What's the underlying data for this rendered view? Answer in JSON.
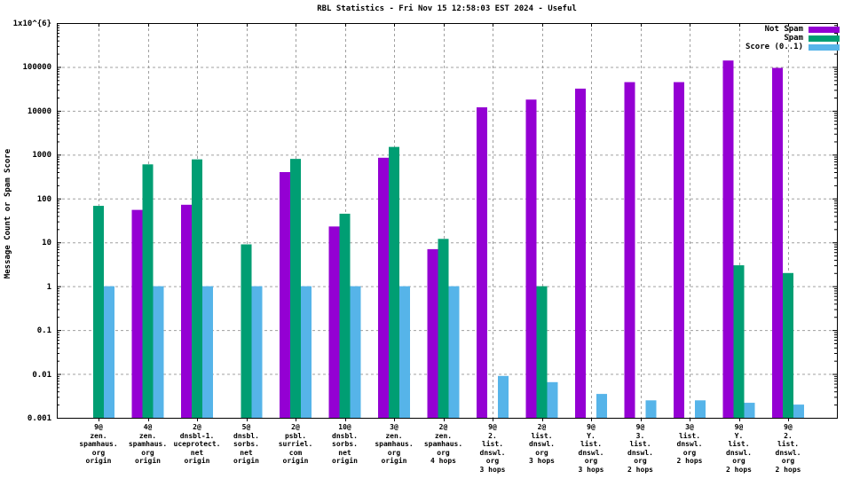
{
  "chart_data": {
    "type": "bar",
    "title": "RBL Statistics - Fri Nov 15 12:58:03 EST 2024 - Useful",
    "ylabel": "Message Count or Spam Score",
    "xlabel": "",
    "y_scale": "log",
    "ylim": [
      0.001,
      1000000
    ],
    "y_tick_labels": [
      "1x10^{6}",
      "100000",
      "10000",
      "1000",
      "100",
      "10",
      "1",
      "0.1",
      "0.01",
      "0.001"
    ],
    "grid": true,
    "legend_position": "top-right-inside",
    "categories": [
      [
        "9@",
        "zen.",
        "spamhaus.",
        "org",
        "origin"
      ],
      [
        "4@",
        "zen.",
        "spamhaus.",
        "org",
        "origin"
      ],
      [
        "2@",
        "dnsbl-1.",
        "uceprotect.",
        "net",
        "origin"
      ],
      [
        "5@",
        "dnsbl.",
        "sorbs.",
        "net",
        "origin"
      ],
      [
        "2@",
        "psbl.",
        "surriel.",
        "com",
        "origin"
      ],
      [
        "10@",
        "dnsbl.",
        "sorbs.",
        "net",
        "origin"
      ],
      [
        "3@",
        "zen.",
        "spamhaus.",
        "org",
        "origin"
      ],
      [
        "2@",
        "zen.",
        "spamhaus.",
        "org",
        "4 hops"
      ],
      [
        "9@",
        "2.",
        "list.",
        "dnswl.",
        "org",
        "3 hops"
      ],
      [
        "2@",
        "list.",
        "dnswl.",
        "org",
        "3 hops"
      ],
      [
        "9@",
        "Y.",
        "list.",
        "dnswl.",
        "org",
        "3 hops"
      ],
      [
        "9@",
        "3.",
        "list.",
        "dnswl.",
        "org",
        "2 hops"
      ],
      [
        "3@",
        "list.",
        "dnswl.",
        "org",
        "2 hops"
      ],
      [
        "9@",
        "Y.",
        "list.",
        "dnswl.",
        "org",
        "2 hops"
      ],
      [
        "9@",
        "2.",
        "list.",
        "dnswl.",
        "org",
        "2 hops"
      ]
    ],
    "series": [
      {
        "name": "Not Spam",
        "color": "#9400d3",
        "values": [
          null,
          55,
          72,
          null,
          400,
          23,
          850,
          7,
          12000,
          18000,
          32000,
          45000,
          45000,
          140000,
          95000
        ]
      },
      {
        "name": "Spam",
        "color": "#009e73",
        "values": [
          68,
          600,
          780,
          9,
          800,
          45,
          1500,
          12,
          null,
          1,
          null,
          null,
          null,
          3,
          2
        ]
      },
      {
        "name": "Score (0..1)",
        "color": "#56b4e9",
        "values": [
          1,
          1,
          1,
          1,
          1,
          1,
          1,
          1,
          0.009,
          0.0065,
          0.0035,
          0.0025,
          0.0025,
          0.0022,
          0.002
        ]
      }
    ],
    "colors": {
      "grid": "#a0a0a0",
      "axis": "#000000",
      "background": "#ffffff"
    }
  }
}
